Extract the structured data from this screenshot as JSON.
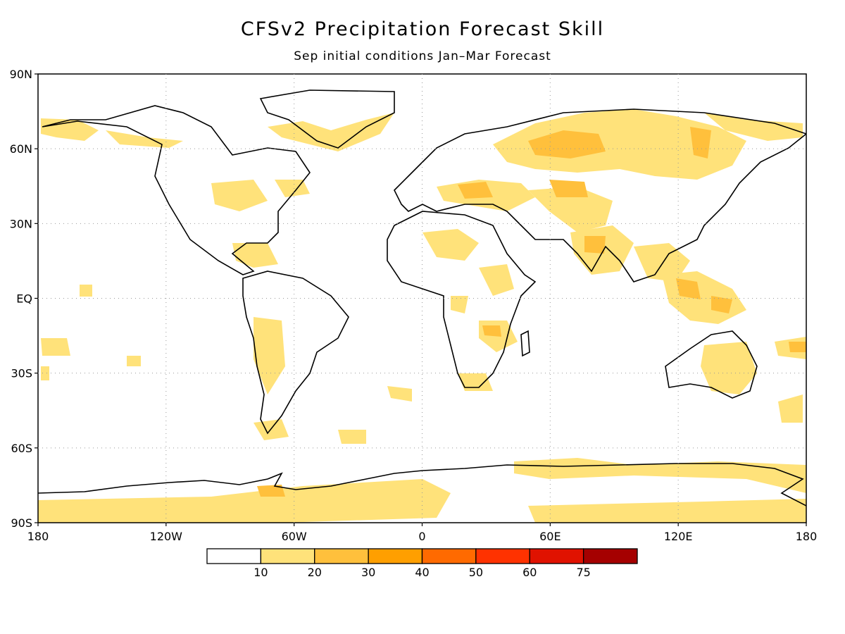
{
  "title": "CFSv2 Precipitation Forecast Skill",
  "subtitle": "Sep initial conditions   Jan–Mar Forecast",
  "map": {
    "lat_labels": [
      "90N",
      "60N",
      "30N",
      "EQ",
      "30S",
      "60S",
      "90S"
    ],
    "lon_labels": [
      "180",
      "120W",
      "60W",
      "0",
      "60E",
      "120E",
      "180"
    ],
    "lat_values": [
      90,
      60,
      30,
      0,
      -30,
      -60,
      -90
    ],
    "lon_values": [
      -180,
      -120,
      -60,
      0,
      60,
      120,
      180
    ],
    "grid": true
  },
  "legend": {
    "labels": [
      "10",
      "20",
      "30",
      "40",
      "50",
      "60",
      "75"
    ],
    "colors": [
      "#ffffff",
      "#ffe27a",
      "#ffc03c",
      "#ff9f00",
      "#ff6a00",
      "#ff3200",
      "#e01200",
      "#a50000"
    ]
  },
  "colors": {
    "c10": "#ffe27a",
    "c20": "#ffc03c",
    "c30": "#ff9f00",
    "coast": "#000000"
  }
}
